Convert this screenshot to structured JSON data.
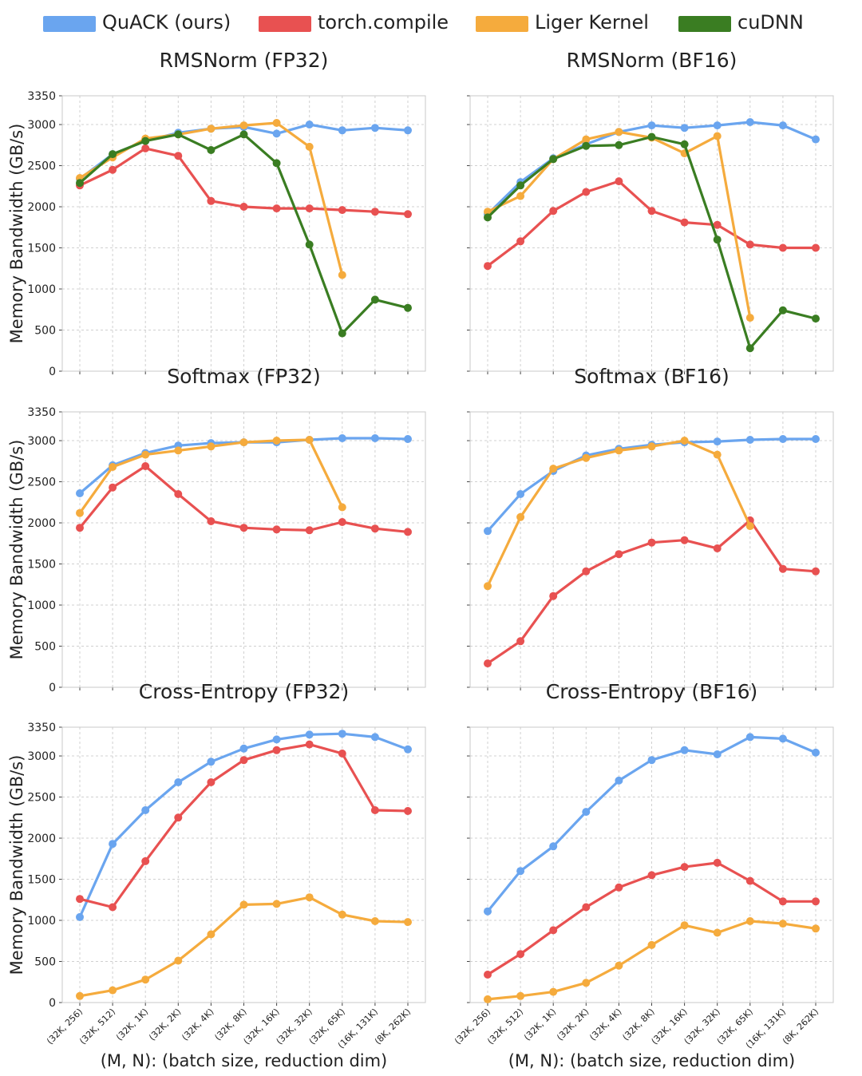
{
  "legend": [
    {
      "name": "QuACK (ours)",
      "color": "#6aa5ef"
    },
    {
      "name": "torch.compile",
      "color": "#e85151"
    },
    {
      "name": "Liger Kernel",
      "color": "#f5ab3d"
    },
    {
      "name": "cuDNN",
      "color": "#3a7d22"
    }
  ],
  "chart_data": [
    {
      "type": "line",
      "title": "RMSNorm (FP32)",
      "xlabel": "",
      "ylabel": "Memory Bandwidth (GB/s)",
      "ylim": [
        0,
        3350
      ],
      "yticks": [
        0,
        500,
        1000,
        1500,
        2000,
        2500,
        3000,
        3350
      ],
      "grid": true,
      "categories": [
        "(32K, 256)",
        "(32K, 512)",
        "(32K, 1K)",
        "(32K, 2K)",
        "(32K, 4K)",
        "(32K, 8K)",
        "(32K, 16K)",
        "(32K, 32K)",
        "(32K, 65K)",
        "(16K, 131K)",
        "(8K, 262K)"
      ],
      "series": [
        {
          "name": "QuACK (ours)",
          "values": [
            2340,
            2640,
            2800,
            2900,
            2950,
            2970,
            2890,
            3000,
            2930,
            2960,
            2930
          ]
        },
        {
          "name": "torch.compile",
          "values": [
            2260,
            2450,
            2710,
            2620,
            2070,
            2000,
            1980,
            1980,
            1960,
            1940,
            1910
          ]
        },
        {
          "name": "Liger Kernel",
          "values": [
            2350,
            2600,
            2830,
            2880,
            2950,
            2990,
            3020,
            2730,
            1170,
            null,
            null
          ]
        },
        {
          "name": "cuDNN",
          "values": [
            2290,
            2640,
            2800,
            2880,
            2690,
            2880,
            2530,
            1540,
            460,
            870,
            770
          ]
        }
      ]
    },
    {
      "type": "line",
      "title": "RMSNorm (BF16)",
      "xlabel": "",
      "ylabel": "",
      "ylim": [
        0,
        3350
      ],
      "yticks": [
        0,
        500,
        1000,
        1500,
        2000,
        2500,
        3000,
        3350
      ],
      "grid": true,
      "categories": [
        "(32K, 256)",
        "(32K, 512)",
        "(32K, 1K)",
        "(32K, 2K)",
        "(32K, 4K)",
        "(32K, 8K)",
        "(32K, 16K)",
        "(32K, 32K)",
        "(32K, 65K)",
        "(16K, 131K)",
        "(8K, 262K)"
      ],
      "series": [
        {
          "name": "QuACK (ours)",
          "values": [
            1910,
            2300,
            2590,
            2760,
            2910,
            2990,
            2960,
            2990,
            3030,
            2990,
            2820
          ]
        },
        {
          "name": "torch.compile",
          "values": [
            1280,
            1580,
            1950,
            2180,
            2310,
            1950,
            1810,
            1780,
            1540,
            1500,
            1500
          ]
        },
        {
          "name": "Liger Kernel",
          "values": [
            1940,
            2130,
            2580,
            2820,
            2910,
            2840,
            2650,
            2860,
            650,
            null,
            null
          ]
        },
        {
          "name": "cuDNN",
          "values": [
            1870,
            2260,
            2580,
            2740,
            2750,
            2850,
            2760,
            1600,
            280,
            740,
            640
          ]
        }
      ]
    },
    {
      "type": "line",
      "title": "Softmax (FP32)",
      "xlabel": "",
      "ylabel": "Memory Bandwidth (GB/s)",
      "ylim": [
        0,
        3350
      ],
      "yticks": [
        0,
        500,
        1000,
        1500,
        2000,
        2500,
        3000,
        3350
      ],
      "grid": true,
      "categories": [
        "(32K, 256)",
        "(32K, 512)",
        "(32K, 1K)",
        "(32K, 2K)",
        "(32K, 4K)",
        "(32K, 8K)",
        "(32K, 16K)",
        "(32K, 32K)",
        "(32K, 65K)",
        "(16K, 131K)",
        "(8K, 262K)"
      ],
      "series": [
        {
          "name": "QuACK (ours)",
          "values": [
            2360,
            2700,
            2850,
            2940,
            2970,
            2980,
            2980,
            3010,
            3030,
            3030,
            3020
          ]
        },
        {
          "name": "torch.compile",
          "values": [
            1940,
            2430,
            2690,
            2350,
            2020,
            1940,
            1920,
            1910,
            2010,
            1930,
            1890
          ]
        },
        {
          "name": "Liger Kernel",
          "values": [
            2120,
            2680,
            2830,
            2880,
            2930,
            2980,
            3000,
            3010,
            2190,
            null,
            null
          ]
        }
      ]
    },
    {
      "type": "line",
      "title": "Softmax (BF16)",
      "xlabel": "",
      "ylabel": "",
      "ylim": [
        0,
        3350
      ],
      "yticks": [
        0,
        500,
        1000,
        1500,
        2000,
        2500,
        3000,
        3350
      ],
      "grid": true,
      "categories": [
        "(32K, 256)",
        "(32K, 512)",
        "(32K, 1K)",
        "(32K, 2K)",
        "(32K, 4K)",
        "(32K, 8K)",
        "(32K, 16K)",
        "(32K, 32K)",
        "(32K, 65K)",
        "(16K, 131K)",
        "(8K, 262K)"
      ],
      "series": [
        {
          "name": "QuACK (ours)",
          "values": [
            1900,
            2350,
            2630,
            2820,
            2900,
            2950,
            2980,
            2990,
            3010,
            3020,
            3020
          ]
        },
        {
          "name": "torch.compile",
          "values": [
            290,
            560,
            1110,
            1410,
            1620,
            1760,
            1790,
            1690,
            2030,
            1440,
            1410
          ]
        },
        {
          "name": "Liger Kernel",
          "values": [
            1230,
            2070,
            2660,
            2790,
            2880,
            2930,
            3000,
            2830,
            1960,
            null,
            null
          ]
        }
      ]
    },
    {
      "type": "line",
      "title": "Cross-Entropy (FP32)",
      "xlabel": "(M, N): (batch size, reduction dim)",
      "ylabel": "Memory Bandwidth (GB/s)",
      "ylim": [
        0,
        3350
      ],
      "yticks": [
        0,
        500,
        1000,
        1500,
        2000,
        2500,
        3000,
        3350
      ],
      "grid": true,
      "categories": [
        "(32K, 256)",
        "(32K, 512)",
        "(32K, 1K)",
        "(32K, 2K)",
        "(32K, 4K)",
        "(32K, 8K)",
        "(32K, 16K)",
        "(32K, 32K)",
        "(32K, 65K)",
        "(16K, 131K)",
        "(8K, 262K)"
      ],
      "series": [
        {
          "name": "QuACK (ours)",
          "values": [
            1040,
            1930,
            2340,
            2680,
            2930,
            3090,
            3200,
            3260,
            3270,
            3230,
            3080
          ]
        },
        {
          "name": "torch.compile",
          "values": [
            1260,
            1160,
            1720,
            2250,
            2680,
            2950,
            3070,
            3140,
            3030,
            2340,
            2330
          ]
        },
        {
          "name": "Liger Kernel",
          "values": [
            80,
            150,
            280,
            510,
            830,
            1190,
            1200,
            1280,
            1070,
            990,
            980
          ]
        }
      ]
    },
    {
      "type": "line",
      "title": "Cross-Entropy (BF16)",
      "xlabel": "(M, N): (batch size, reduction dim)",
      "ylabel": "",
      "ylim": [
        0,
        3350
      ],
      "yticks": [
        0,
        500,
        1000,
        1500,
        2000,
        2500,
        3000,
        3350
      ],
      "grid": true,
      "categories": [
        "(32K, 256)",
        "(32K, 512)",
        "(32K, 1K)",
        "(32K, 2K)",
        "(32K, 4K)",
        "(32K, 8K)",
        "(32K, 16K)",
        "(32K, 32K)",
        "(32K, 65K)",
        "(16K, 131K)",
        "(8K, 262K)"
      ],
      "series": [
        {
          "name": "QuACK (ours)",
          "values": [
            1110,
            1600,
            1900,
            2320,
            2700,
            2950,
            3070,
            3020,
            3230,
            3210,
            3040
          ]
        },
        {
          "name": "torch.compile",
          "values": [
            340,
            590,
            880,
            1160,
            1400,
            1550,
            1650,
            1700,
            1480,
            1230,
            1230
          ]
        },
        {
          "name": "Liger Kernel",
          "values": [
            40,
            80,
            130,
            240,
            450,
            700,
            940,
            850,
            990,
            960,
            900
          ]
        }
      ]
    }
  ]
}
